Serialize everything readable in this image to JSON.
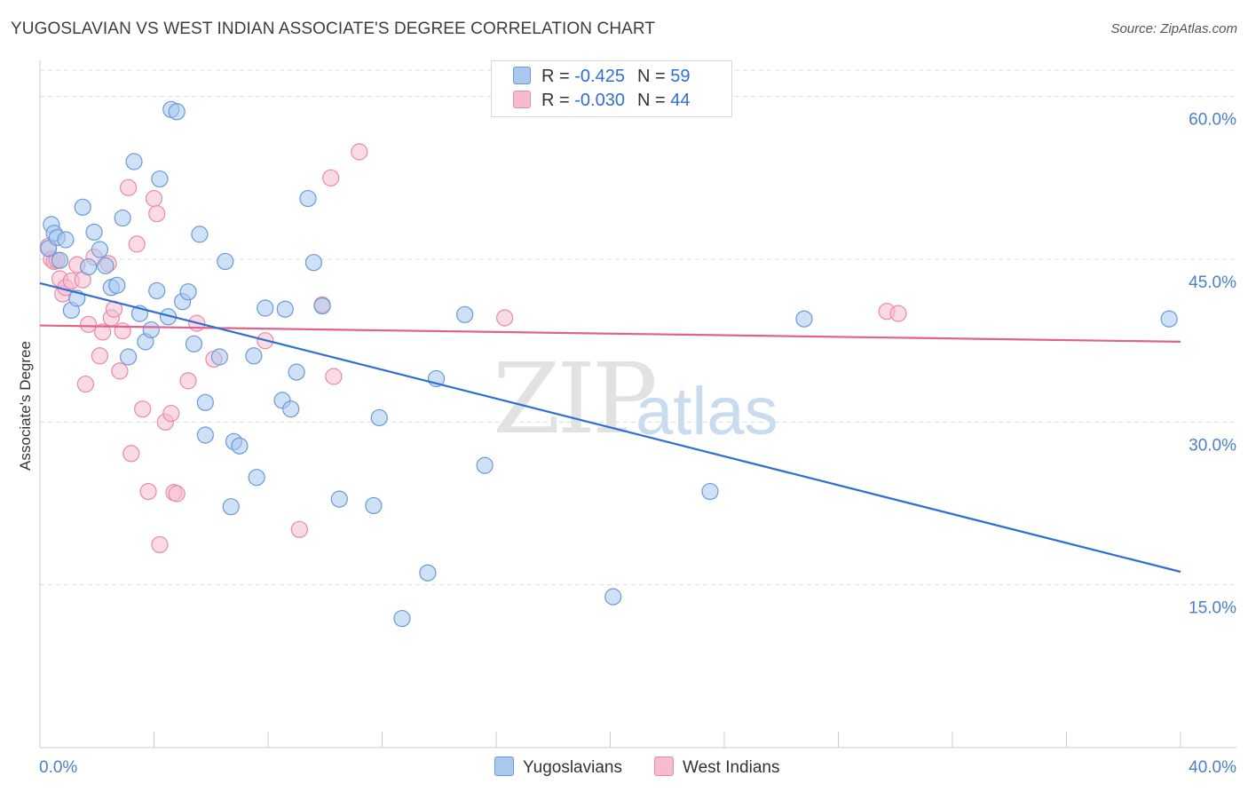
{
  "header": {
    "title": "YUGOSLAVIAN VS WEST INDIAN ASSOCIATE'S DEGREE CORRELATION CHART",
    "source": "Source: ZipAtlas.com"
  },
  "watermark": {
    "zip": "ZIP",
    "atlas": "atlas"
  },
  "legend": {
    "rows": [
      {
        "r_label": "R =",
        "r_value": "-0.425",
        "n_label": "N =",
        "n_value": "59"
      },
      {
        "r_label": "R =",
        "r_value": "-0.030",
        "n_label": "N =",
        "n_value": "44"
      }
    ]
  },
  "bottom_legend": {
    "series1": "Yugoslavians",
    "series2": "West Indians"
  },
  "colors": {
    "blue_fill": "#a8c8ee",
    "blue_stroke": "#6a9ad8",
    "blue_line": "#2f6fd1",
    "pink_fill": "#f6bccd",
    "pink_stroke": "#e88aa6",
    "pink_line": "#e0628d",
    "grid": "#dddddd",
    "axis_text": "#4a7fc9"
  },
  "chart_data": {
    "type": "scatter",
    "title": "YUGOSLAVIAN VS WEST INDIAN ASSOCIATE'S DEGREE CORRELATION CHART",
    "xlabel": "",
    "ylabel": "Associate's Degree",
    "xlim": [
      0,
      40
    ],
    "ylim": [
      0,
      63
    ],
    "x_tick_labels": [
      "0.0%",
      "40.0%"
    ],
    "y_ticks": [
      15,
      30,
      45,
      60
    ],
    "y_tick_labels": [
      "15.0%",
      "30.0%",
      "45.0%",
      "60.0%"
    ],
    "grid": true,
    "series": [
      {
        "name": "Yugoslavians",
        "r": -0.425,
        "n": 59,
        "trend": {
          "x": [
            0,
            40
          ],
          "y": [
            42.8,
            16.2
          ]
        },
        "points": [
          [
            0.3,
            46.0
          ],
          [
            0.4,
            48.2
          ],
          [
            0.5,
            47.4
          ],
          [
            0.6,
            47.0
          ],
          [
            0.7,
            44.9
          ],
          [
            0.9,
            46.8
          ],
          [
            1.1,
            40.3
          ],
          [
            1.3,
            41.4
          ],
          [
            1.5,
            49.8
          ],
          [
            1.7,
            44.3
          ],
          [
            1.9,
            47.5
          ],
          [
            2.1,
            45.9
          ],
          [
            2.3,
            44.4
          ],
          [
            2.5,
            42.4
          ],
          [
            2.7,
            42.6
          ],
          [
            2.9,
            48.8
          ],
          [
            3.1,
            36.0
          ],
          [
            3.3,
            54.0
          ],
          [
            3.5,
            40.0
          ],
          [
            3.7,
            37.4
          ],
          [
            3.9,
            38.5
          ],
          [
            4.1,
            42.1
          ],
          [
            4.2,
            52.4
          ],
          [
            4.5,
            39.7
          ],
          [
            4.6,
            58.8
          ],
          [
            4.8,
            58.6
          ],
          [
            5.0,
            41.1
          ],
          [
            5.2,
            42.0
          ],
          [
            5.4,
            37.2
          ],
          [
            5.6,
            47.3
          ],
          [
            5.8,
            31.8
          ],
          [
            5.8,
            28.8
          ],
          [
            6.3,
            36.0
          ],
          [
            6.5,
            44.8
          ],
          [
            6.7,
            22.2
          ],
          [
            6.8,
            28.2
          ],
          [
            7.0,
            27.8
          ],
          [
            7.5,
            36.1
          ],
          [
            7.6,
            24.9
          ],
          [
            7.9,
            40.5
          ],
          [
            8.5,
            32.0
          ],
          [
            8.6,
            40.4
          ],
          [
            8.8,
            31.2
          ],
          [
            9.0,
            34.6
          ],
          [
            9.4,
            50.6
          ],
          [
            9.6,
            44.7
          ],
          [
            9.9,
            40.7
          ],
          [
            10.5,
            22.9
          ],
          [
            11.7,
            22.3
          ],
          [
            11.9,
            30.4
          ],
          [
            12.7,
            11.9
          ],
          [
            13.6,
            16.1
          ],
          [
            13.9,
            34.0
          ],
          [
            14.9,
            39.9
          ],
          [
            15.6,
            26.0
          ],
          [
            20.1,
            13.9
          ],
          [
            23.5,
            23.6
          ],
          [
            26.8,
            39.5
          ],
          [
            39.6,
            39.5
          ]
        ]
      },
      {
        "name": "West Indians",
        "r": -0.03,
        "n": 44,
        "trend": {
          "x": [
            0,
            40
          ],
          "y": [
            38.9,
            37.4
          ]
        },
        "points": [
          [
            0.3,
            46.2
          ],
          [
            0.4,
            45.0
          ],
          [
            0.5,
            44.8
          ],
          [
            0.6,
            44.9
          ],
          [
            0.7,
            43.2
          ],
          [
            0.8,
            41.8
          ],
          [
            0.9,
            42.4
          ],
          [
            1.1,
            43.0
          ],
          [
            1.3,
            44.5
          ],
          [
            1.5,
            43.1
          ],
          [
            1.6,
            33.5
          ],
          [
            1.7,
            39.0
          ],
          [
            1.9,
            45.2
          ],
          [
            2.1,
            36.1
          ],
          [
            2.2,
            38.3
          ],
          [
            2.4,
            44.6
          ],
          [
            2.5,
            39.6
          ],
          [
            2.6,
            40.4
          ],
          [
            2.8,
            34.7
          ],
          [
            2.9,
            38.4
          ],
          [
            3.1,
            51.6
          ],
          [
            3.2,
            27.1
          ],
          [
            3.4,
            46.4
          ],
          [
            3.6,
            31.2
          ],
          [
            3.8,
            23.6
          ],
          [
            4.0,
            50.6
          ],
          [
            4.1,
            49.2
          ],
          [
            4.2,
            18.7
          ],
          [
            4.4,
            30.0
          ],
          [
            4.6,
            30.8
          ],
          [
            4.7,
            23.5
          ],
          [
            4.8,
            23.4
          ],
          [
            5.2,
            33.8
          ],
          [
            5.5,
            39.1
          ],
          [
            6.1,
            35.8
          ],
          [
            7.9,
            37.5
          ],
          [
            9.1,
            20.1
          ],
          [
            9.9,
            40.8
          ],
          [
            10.2,
            52.5
          ],
          [
            10.3,
            34.2
          ],
          [
            11.2,
            54.9
          ],
          [
            16.3,
            39.6
          ],
          [
            29.7,
            40.2
          ],
          [
            30.1,
            40.0
          ]
        ]
      }
    ]
  }
}
